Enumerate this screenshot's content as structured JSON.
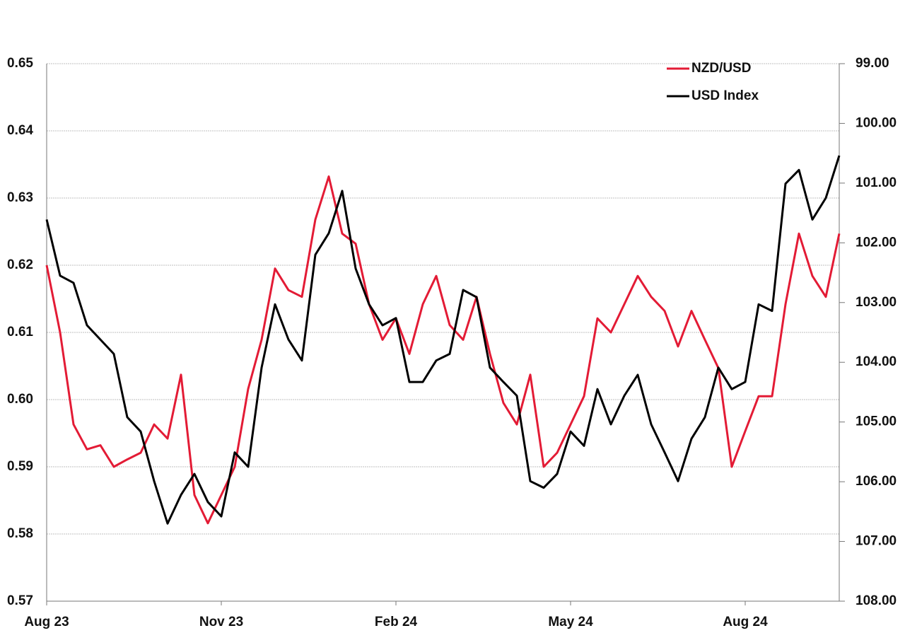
{
  "chart_data": {
    "type": "line",
    "categories": [
      "Aug 23",
      null,
      null,
      null,
      null,
      null,
      null,
      null,
      null,
      null,
      null,
      null,
      null,
      "Nov 23",
      null,
      null,
      null,
      null,
      null,
      null,
      null,
      null,
      null,
      null,
      null,
      null,
      "Feb 24",
      null,
      null,
      null,
      null,
      null,
      null,
      null,
      null,
      null,
      null,
      null,
      null,
      "May 24",
      null,
      null,
      null,
      null,
      null,
      null,
      null,
      null,
      null,
      null,
      null,
      null,
      "Aug 24",
      null,
      null,
      null,
      null,
      null,
      null,
      null
    ],
    "series": [
      {
        "name": "NZD/USD",
        "color": "#e31b35",
        "values": [
          0.62,
          0.61,
          0.5963,
          0.5926,
          0.5932,
          0.59,
          0.5911,
          0.5921,
          0.5963,
          0.5942,
          0.6037,
          0.5858,
          0.5816,
          0.5858,
          0.59,
          0.6016,
          0.6089,
          0.6195,
          0.6163,
          0.6153,
          0.6268,
          0.6332,
          0.6247,
          0.6232,
          0.6142,
          0.6089,
          0.6121,
          0.6068,
          0.6142,
          0.6184,
          0.6111,
          0.6089,
          0.6153,
          0.6068,
          0.5995,
          0.5963,
          0.6037,
          0.59,
          0.5921,
          0.5963,
          0.6005,
          0.6121,
          0.61,
          0.6142,
          0.6184,
          0.6153,
          0.6132,
          0.6079,
          0.6132,
          0.6089,
          0.6047,
          0.59,
          0.5953,
          0.6005,
          0.6005,
          0.6142,
          0.6247,
          0.6184,
          0.6153,
          0.6247
        ]
      },
      {
        "name": "USD Index",
        "color": "#000000",
        "axis": "y2",
        "values": [
          101.61,
          102.55,
          102.67,
          103.38,
          103.62,
          103.86,
          104.92,
          105.16,
          105.99,
          106.7,
          106.22,
          105.87,
          106.34,
          106.58,
          105.51,
          105.75,
          104.09,
          103.03,
          103.62,
          103.97,
          102.2,
          101.84,
          101.13,
          102.43,
          103.03,
          103.38,
          103.26,
          104.33,
          104.33,
          103.97,
          103.86,
          102.79,
          102.91,
          104.09,
          104.33,
          104.56,
          105.99,
          106.1,
          105.87,
          105.16,
          105.4,
          104.45,
          105.04,
          104.56,
          104.21,
          105.04,
          105.51,
          105.99,
          105.28,
          104.92,
          104.09,
          104.45,
          104.33,
          103.03,
          103.14,
          101.01,
          100.78,
          101.61,
          101.25,
          100.54
        ]
      }
    ],
    "ylim": [
      0.57,
      0.65
    ],
    "yticks": [
      0.57,
      0.58,
      0.59,
      {
        "value": 0.6,
        "label": "0.60"
      },
      0.61,
      0.62,
      0.63,
      0.64,
      0.65
    ],
    "y2lim": [
      108,
      99
    ],
    "y2ticks": [
      {
        "value": 108,
        "label": "108.00"
      },
      {
        "value": 107,
        "label": "107.00"
      },
      {
        "value": 106,
        "label": "106.00"
      },
      {
        "value": 105,
        "label": "105.00"
      },
      {
        "value": 104,
        "label": "104.00"
      },
      {
        "value": 103,
        "label": "103.00"
      },
      {
        "value": 102,
        "label": "102.00"
      },
      {
        "value": 101,
        "label": "101.00"
      },
      {
        "value": 100,
        "label": "100.00"
      },
      {
        "value": 99,
        "label": "99.00"
      }
    ],
    "grid": true,
    "legend": "upper right"
  }
}
